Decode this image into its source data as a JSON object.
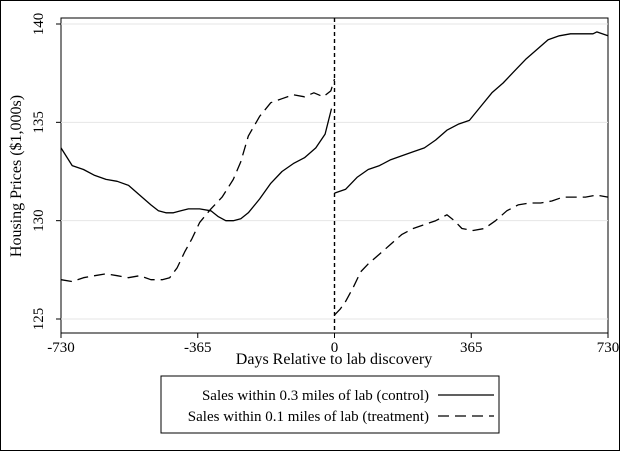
{
  "chart_data": {
    "type": "line",
    "xlabel": "Days Relative to lab discovery",
    "ylabel": "Housing Prices ($1,000s)",
    "xlim": [
      -730,
      730
    ],
    "ylim": [
      125,
      140
    ],
    "xticks": [
      -730,
      -365,
      0,
      365,
      730
    ],
    "xtick_labels": [
      "-730",
      "-365",
      "0",
      "365",
      "730"
    ],
    "yticks": [
      125,
      130,
      135,
      140
    ],
    "ytick_labels": [
      "125",
      "130",
      "135",
      "140"
    ],
    "grid": "horizontal",
    "reference_line": {
      "x": 0,
      "style": "dashed"
    },
    "legend_position": "bottom",
    "series": [
      {
        "name": "Sales within 0.3 miles of lab (control)",
        "style": "solid",
        "color": "#000000",
        "segments": [
          {
            "x": [
              -730,
              -700,
              -670,
              -640,
              -610,
              -580,
              -550,
              -520,
              -490,
              -470,
              -450,
              -430,
              -410,
              -390,
              -360,
              -330,
              -310,
              -290,
              -270,
              -250,
              -230,
              -200,
              -170,
              -140,
              -110,
              -80,
              -50,
              -25,
              -8
            ],
            "y": [
              133.7,
              132.8,
              132.6,
              132.3,
              132.1,
              132.0,
              131.8,
              131.3,
              130.8,
              130.5,
              130.4,
              130.4,
              130.5,
              130.6,
              130.6,
              130.5,
              130.2,
              130.0,
              130.0,
              130.1,
              130.4,
              131.1,
              131.9,
              132.5,
              132.9,
              133.2,
              133.7,
              134.4,
              135.7
            ]
          },
          {
            "x": [
              0,
              30,
              60,
              90,
              120,
              150,
              180,
              210,
              240,
              270,
              300,
              330,
              360,
              390,
              420,
              450,
              480,
              510,
              540,
              570,
              600,
              630,
              660,
              690,
              700,
              730
            ],
            "y": [
              131.4,
              131.6,
              132.2,
              132.6,
              132.8,
              133.1,
              133.3,
              133.5,
              133.7,
              134.1,
              134.6,
              134.9,
              135.1,
              135.8,
              136.5,
              137.0,
              137.6,
              138.2,
              138.7,
              139.2,
              139.4,
              139.5,
              139.5,
              139.5,
              139.6,
              139.4
            ]
          }
        ]
      },
      {
        "name": "Sales within 0.1 miles of lab (treatment)",
        "style": "dashed",
        "color": "#000000",
        "segments": [
          {
            "x": [
              -730,
              -700,
              -670,
              -640,
              -610,
              -580,
              -550,
              -520,
              -490,
              -460,
              -440,
              -420,
              -400,
              -380,
              -360,
              -330,
              -300,
              -270,
              -250,
              -230,
              -200,
              -170,
              -140,
              -110,
              -80,
              -55,
              -30,
              -10,
              0
            ],
            "y": [
              127.0,
              126.9,
              127.1,
              127.2,
              127.3,
              127.2,
              127.1,
              127.2,
              127.0,
              127.0,
              127.1,
              127.6,
              128.4,
              129.1,
              129.9,
              130.6,
              131.2,
              132.1,
              133.0,
              134.3,
              135.3,
              136.0,
              136.2,
              136.4,
              136.3,
              136.5,
              136.3,
              136.6,
              137.2
            ]
          },
          {
            "x": [
              0,
              15,
              30,
              50,
              70,
              90,
              120,
              150,
              180,
              210,
              240,
              270,
              300,
              320,
              340,
              370,
              400,
              430,
              460,
              490,
              520,
              550,
              580,
              610,
              640,
              670,
              700,
              730
            ],
            "y": [
              125.2,
              125.5,
              125.9,
              126.6,
              127.4,
              127.8,
              128.3,
              128.8,
              129.3,
              129.6,
              129.8,
              130.0,
              130.3,
              130.0,
              129.6,
              129.5,
              129.6,
              130.0,
              130.5,
              130.8,
              130.9,
              130.9,
              131.0,
              131.2,
              131.2,
              131.2,
              131.3,
              131.2
            ]
          }
        ]
      }
    ]
  }
}
